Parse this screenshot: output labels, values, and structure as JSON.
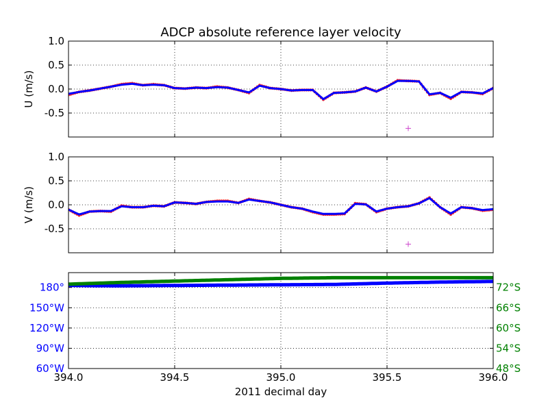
{
  "chart_data": [
    {
      "type": "line",
      "title": "ADCP absolute reference layer velocity",
      "ylabel": "U (m/s)",
      "xlim": [
        394.0,
        396.0
      ],
      "ylim": [
        -1.0,
        1.0
      ],
      "yticks": [
        "1.0",
        "0.5",
        "0.0",
        "-0.5"
      ],
      "grid": true,
      "series": [
        {
          "color": "#ff0000",
          "style": "dots",
          "kind": "raw",
          "x": [
            394.0,
            394.05,
            394.1,
            394.15,
            394.2,
            394.25,
            394.3,
            394.35,
            394.4,
            394.45,
            394.5,
            394.55,
            394.6,
            394.65,
            394.7,
            394.75,
            394.8,
            394.85,
            394.9,
            394.95,
            395.0,
            395.05,
            395.1,
            395.15,
            395.2,
            395.25,
            395.3,
            395.35,
            395.4,
            395.45,
            395.5,
            395.55,
            395.6,
            395.65,
            395.7,
            395.75,
            395.8,
            395.85,
            395.9,
            395.95,
            396.0
          ],
          "values": [
            -0.12,
            -0.06,
            -0.03,
            0.01,
            0.05,
            0.1,
            0.12,
            0.08,
            0.1,
            0.08,
            0.02,
            0.01,
            0.03,
            0.02,
            0.05,
            0.03,
            -0.02,
            -0.08,
            0.08,
            0.02,
            0.0,
            -0.03,
            -0.02,
            -0.02,
            -0.22,
            -0.08,
            -0.07,
            -0.05,
            0.03,
            -0.05,
            0.05,
            0.18,
            0.17,
            0.16,
            -0.12,
            -0.08,
            -0.2,
            -0.06,
            -0.07,
            -0.1,
            0.02
          ]
        },
        {
          "color": "#0000ff",
          "style": "line",
          "kind": "smoothed",
          "x": [
            394.0,
            394.05,
            394.1,
            394.15,
            394.2,
            394.25,
            394.3,
            394.35,
            394.4,
            394.45,
            394.5,
            394.55,
            394.6,
            394.65,
            394.7,
            394.75,
            394.8,
            394.85,
            394.9,
            394.95,
            395.0,
            395.05,
            395.1,
            395.15,
            395.2,
            395.25,
            395.3,
            395.35,
            395.4,
            395.45,
            395.5,
            395.55,
            395.6,
            395.65,
            395.7,
            395.75,
            395.8,
            395.85,
            395.9,
            395.95,
            396.0
          ],
          "values": [
            -0.1,
            -0.06,
            -0.03,
            0.01,
            0.05,
            0.09,
            0.11,
            0.08,
            0.09,
            0.08,
            0.02,
            0.01,
            0.03,
            0.02,
            0.04,
            0.03,
            -0.02,
            -0.07,
            0.07,
            0.02,
            0.0,
            -0.03,
            -0.02,
            -0.02,
            -0.21,
            -0.08,
            -0.07,
            -0.05,
            0.03,
            -0.05,
            0.05,
            0.17,
            0.17,
            0.16,
            -0.11,
            -0.08,
            -0.18,
            -0.06,
            -0.07,
            -0.09,
            0.02
          ]
        },
        {
          "color": "#cc44cc",
          "style": "plus",
          "kind": "marker",
          "x": [
            395.6
          ],
          "values": [
            -0.82
          ]
        }
      ]
    },
    {
      "type": "line",
      "ylabel": "V (m/s)",
      "xlim": [
        394.0,
        396.0
      ],
      "ylim": [
        -1.0,
        1.0
      ],
      "yticks": [
        "1.0",
        "0.5",
        "0.0",
        "-0.5"
      ],
      "grid": true,
      "series": [
        {
          "color": "#ff0000",
          "style": "dots",
          "kind": "raw",
          "x": [
            394.0,
            394.05,
            394.1,
            394.15,
            394.2,
            394.25,
            394.3,
            394.35,
            394.4,
            394.45,
            394.5,
            394.55,
            394.6,
            394.65,
            394.7,
            394.75,
            394.8,
            394.85,
            394.9,
            394.95,
            395.0,
            395.05,
            395.1,
            395.15,
            395.2,
            395.25,
            395.3,
            395.35,
            395.4,
            395.45,
            395.5,
            395.55,
            395.6,
            395.65,
            395.7,
            395.75,
            395.8,
            395.85,
            395.9,
            395.95,
            396.0
          ],
          "values": [
            -0.1,
            -0.22,
            -0.14,
            -0.13,
            -0.14,
            -0.02,
            -0.05,
            -0.05,
            -0.02,
            -0.03,
            0.05,
            0.04,
            0.02,
            0.06,
            0.08,
            0.08,
            0.04,
            0.12,
            0.08,
            0.05,
            0.0,
            -0.05,
            -0.08,
            -0.15,
            -0.2,
            -0.2,
            -0.19,
            0.03,
            0.01,
            -0.15,
            -0.08,
            -0.05,
            -0.03,
            0.03,
            0.15,
            -0.05,
            -0.2,
            -0.05,
            -0.07,
            -0.12,
            -0.1
          ]
        },
        {
          "color": "#0000ff",
          "style": "line",
          "kind": "smoothed",
          "x": [
            394.0,
            394.05,
            394.1,
            394.15,
            394.2,
            394.25,
            394.3,
            394.35,
            394.4,
            394.45,
            394.5,
            394.55,
            394.6,
            394.65,
            394.7,
            394.75,
            394.8,
            394.85,
            394.9,
            394.95,
            395.0,
            395.05,
            395.1,
            395.15,
            395.2,
            395.25,
            395.3,
            395.35,
            395.4,
            395.45,
            395.5,
            395.55,
            395.6,
            395.65,
            395.7,
            395.75,
            395.8,
            395.85,
            395.9,
            395.95,
            396.0
          ],
          "values": [
            -0.1,
            -0.2,
            -0.14,
            -0.13,
            -0.13,
            -0.03,
            -0.05,
            -0.05,
            -0.02,
            -0.03,
            0.05,
            0.04,
            0.02,
            0.06,
            0.07,
            0.07,
            0.04,
            0.11,
            0.08,
            0.05,
            0.0,
            -0.05,
            -0.08,
            -0.14,
            -0.19,
            -0.19,
            -0.18,
            0.02,
            0.01,
            -0.14,
            -0.08,
            -0.05,
            -0.03,
            0.03,
            0.14,
            -0.05,
            -0.18,
            -0.05,
            -0.07,
            -0.11,
            -0.09
          ]
        },
        {
          "color": "#cc44cc",
          "style": "plus",
          "kind": "marker",
          "x": [
            395.6
          ],
          "values": [
            -0.82
          ]
        }
      ]
    },
    {
      "type": "line",
      "xlabel": "2011 decimal day",
      "xlim": [
        394.0,
        396.0
      ],
      "xticks": [
        "394.0",
        "394.5",
        "395.0",
        "395.5",
        "396.0"
      ],
      "grid": true,
      "left_axis": {
        "color": "#0000ff",
        "ticks": [
          "60°W",
          "90°W",
          "120°W",
          "150°W",
          "180°"
        ],
        "tick_values": [
          -60,
          -90,
          -120,
          -150,
          -180
        ],
        "ylim": [
          -60,
          -202
        ]
      },
      "right_axis": {
        "color": "#008000",
        "ticks": [
          "48°S",
          "54°S",
          "60°S",
          "66°S",
          "72°S"
        ],
        "tick_values": [
          -48,
          -54,
          -60,
          -66,
          -72
        ],
        "ylim": [
          -48,
          -76.4
        ]
      },
      "series": [
        {
          "color": "#0000ff",
          "style": "thick",
          "axis": "left",
          "kind": "longitude",
          "x": [
            394.0,
            394.1,
            394.25,
            394.5,
            394.75,
            395.0,
            395.25,
            395.5,
            395.75,
            396.0
          ],
          "values": [
            -183,
            -182.7,
            -182.5,
            -183,
            -183.5,
            -184,
            -184.5,
            -186.5,
            -188,
            -189
          ]
        },
        {
          "color": "#008000",
          "style": "thick",
          "axis": "right",
          "kind": "latitude",
          "x": [
            394.0,
            394.1,
            394.25,
            394.5,
            394.75,
            395.0,
            395.25,
            395.5,
            395.75,
            396.0
          ],
          "values": [
            -73.0,
            -73.2,
            -73.5,
            -73.9,
            -74.3,
            -74.7,
            -74.9,
            -74.9,
            -74.9,
            -74.9
          ]
        }
      ]
    }
  ]
}
